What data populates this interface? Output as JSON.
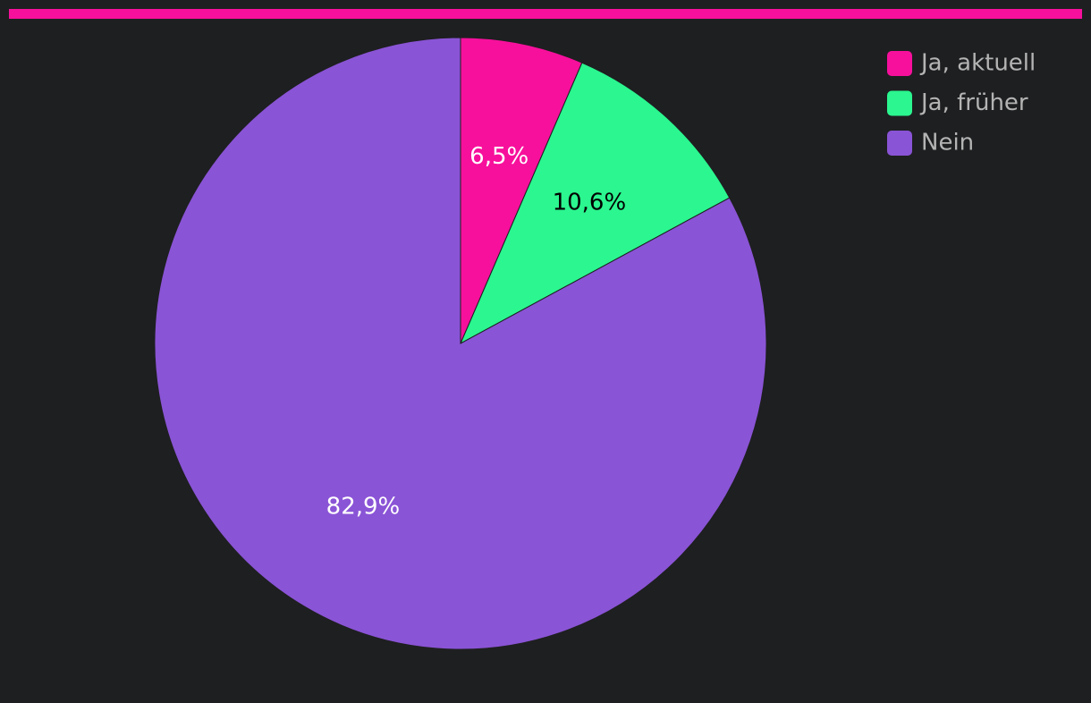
{
  "chart_data": {
    "type": "pie",
    "categories": [
      "Ja, aktuell",
      "Ja, früher",
      "Nein"
    ],
    "values": [
      6.5,
      10.6,
      82.9
    ],
    "value_labels": [
      "6,5%",
      "10,6%",
      "82,9%"
    ],
    "colors": [
      "#f7109c",
      "#2bf68f",
      "#8a54d6"
    ],
    "legend": "top-right"
  }
}
